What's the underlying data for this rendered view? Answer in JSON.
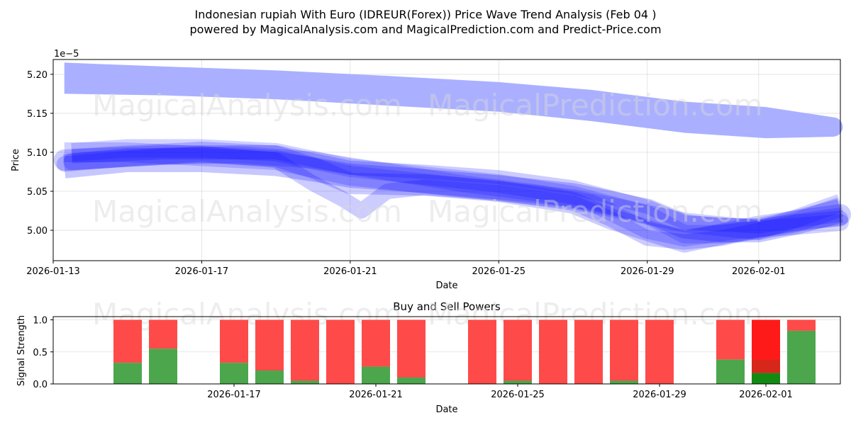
{
  "header": {
    "title_line1": "Indonesian rupiah With Euro (IDREUR(Forex)) Price Wave Trend Analysis (Feb 04 )",
    "title_line2": "powered by MagicalAnalysis.com and MagicalPrediction.com and Predict-Price.com"
  },
  "watermarks": {
    "left": "MagicalAnalysis.com",
    "right": "MagicalPrediction.com"
  },
  "colors": {
    "wave": "#0000ff",
    "wave_upper": "#aab0ff",
    "buy": "#4ca64c",
    "sell": "#ff4a4a",
    "buy_strong": "#138a13",
    "sell_strong": "#ff1a1a"
  },
  "chart_data": [
    {
      "type": "area",
      "title": "",
      "xlabel": "Date",
      "ylabel": "Price",
      "y_exponent_label": "1e−5",
      "xlim": [
        0,
        21.2
      ],
      "ylim": [
        4.961,
        5.219
      ],
      "grid": true,
      "x_ticks": [
        {
          "x": 0,
          "label": "2026-01-13"
        },
        {
          "x": 4,
          "label": "2026-01-17"
        },
        {
          "x": 8,
          "label": "2026-01-21"
        },
        {
          "x": 12,
          "label": "2026-01-25"
        },
        {
          "x": 16,
          "label": "2026-01-29"
        },
        {
          "x": 19,
          "label": "2026-02-01"
        }
      ],
      "y_ticks": [
        {
          "y": 5.0,
          "label": "5.00"
        },
        {
          "y": 5.05,
          "label": "5.05"
        },
        {
          "y": 5.1,
          "label": "5.10"
        },
        {
          "y": 5.15,
          "label": "5.15"
        },
        {
          "y": 5.2,
          "label": "5.20"
        }
      ],
      "upper_band": {
        "x": [
          0.3,
          3,
          6,
          9,
          12,
          14.5,
          17,
          19.2,
          21
        ],
        "upper": [
          5.215,
          5.21,
          5.205,
          5.198,
          5.19,
          5.18,
          5.165,
          5.158,
          5.145
        ],
        "lower": [
          5.175,
          5.173,
          5.168,
          5.16,
          5.152,
          5.14,
          5.125,
          5.118,
          5.12
        ]
      },
      "waves": [
        {
          "x": [
            0.3,
            2,
            4,
            6,
            7,
            8,
            10,
            12,
            14,
            16,
            17,
            18,
            19,
            20,
            21.2
          ],
          "y": [
            5.082,
            5.09,
            5.09,
            5.085,
            5.078,
            5.07,
            5.063,
            5.055,
            5.045,
            5.025,
            5.005,
            5.0,
            5.0,
            5.01,
            5.025
          ],
          "w": 34,
          "o": 0.22
        },
        {
          "x": [
            0.3,
            2,
            4,
            6,
            7,
            8,
            10,
            12,
            14,
            15,
            16,
            17,
            18,
            19,
            20,
            21.2
          ],
          "y": [
            5.09,
            5.095,
            5.1,
            5.095,
            5.08,
            5.06,
            5.058,
            5.05,
            5.035,
            5.015,
            5.0,
            4.985,
            4.995,
            5.005,
            5.012,
            5.02
          ],
          "w": 30,
          "o": 0.2
        },
        {
          "x": [
            0.5,
            2,
            4,
            6,
            8,
            10,
            12,
            14,
            16,
            17,
            18,
            19,
            20,
            21.2
          ],
          "y": [
            5.1,
            5.105,
            5.105,
            5.1,
            5.08,
            5.07,
            5.06,
            5.045,
            5.02,
            4.995,
            4.995,
            5.0,
            5.015,
            5.035
          ],
          "w": 26,
          "o": 0.18
        },
        {
          "x": [
            0.3,
            2,
            4,
            6,
            7,
            7.8,
            8.3,
            9,
            10,
            12,
            14,
            15,
            16,
            17,
            18,
            19,
            20,
            21.2
          ],
          "y": [
            5.085,
            5.092,
            5.098,
            5.09,
            5.06,
            5.04,
            5.025,
            5.05,
            5.055,
            5.048,
            5.035,
            5.015,
            4.99,
            4.985,
            4.99,
            5.0,
            5.01,
            5.015
          ],
          "w": 22,
          "o": 0.2
        },
        {
          "x": [
            0.5,
            3,
            6,
            8,
            10,
            12,
            14,
            16,
            17,
            19,
            21.2
          ],
          "y": [
            5.095,
            5.1,
            5.1,
            5.08,
            5.075,
            5.068,
            5.055,
            5.03,
            5.01,
            5.005,
            5.02
          ],
          "w": 20,
          "o": 0.2
        },
        {
          "x": [
            0.5,
            3,
            5,
            7,
            9,
            11,
            13,
            14.5,
            16,
            17,
            18.5,
            20,
            21.2
          ],
          "y": [
            5.088,
            5.095,
            5.097,
            5.09,
            5.075,
            5.06,
            5.048,
            5.035,
            5.0,
            4.99,
            5.0,
            5.005,
            5.01
          ],
          "w": 24,
          "o": 0.18
        },
        {
          "x": [
            0.3,
            2,
            4,
            6,
            8,
            10,
            12,
            14,
            16,
            17,
            18,
            19,
            20,
            21.2
          ],
          "y": [
            5.1,
            5.1,
            5.095,
            5.09,
            5.07,
            5.06,
            5.05,
            5.04,
            5.02,
            5.01,
            5.005,
            5.0,
            5.01,
            5.03
          ],
          "w": 28,
          "o": 0.18
        }
      ]
    },
    {
      "type": "bar",
      "title": "Buy and Sell Powers",
      "xlabel": "Date",
      "ylabel": "Signal Strength",
      "xlim": [
        -1.1,
        21.1
      ],
      "ylim": [
        0,
        1.05
      ],
      "grid": true,
      "x_ticks": [
        {
          "x": 4,
          "label": "2026-01-17"
        },
        {
          "x": 8,
          "label": "2026-01-21"
        },
        {
          "x": 12,
          "label": "2026-01-25"
        },
        {
          "x": 16,
          "label": "2026-01-29"
        },
        {
          "x": 19,
          "label": "2026-02-01"
        }
      ],
      "y_ticks": [
        {
          "y": 0.0,
          "label": "0.0"
        },
        {
          "y": 0.5,
          "label": "0.5"
        },
        {
          "y": 1.0,
          "label": "1.0"
        }
      ],
      "bars": [
        {
          "x": 1,
          "buy": 0.33,
          "strong": false
        },
        {
          "x": 2,
          "buy": 0.55,
          "strong": false
        },
        {
          "x": 4,
          "buy": 0.33,
          "strong": false
        },
        {
          "x": 5,
          "buy": 0.21,
          "strong": false
        },
        {
          "x": 6,
          "buy": 0.05,
          "strong": false
        },
        {
          "x": 7,
          "buy": 0.0,
          "strong": false
        },
        {
          "x": 8,
          "buy": 0.27,
          "strong": false
        },
        {
          "x": 9,
          "buy": 0.1,
          "strong": false
        },
        {
          "x": 11,
          "buy": 0.0,
          "strong": false
        },
        {
          "x": 12,
          "buy": 0.05,
          "strong": false
        },
        {
          "x": 13,
          "buy": 0.0,
          "strong": false
        },
        {
          "x": 14,
          "buy": 0.0,
          "strong": false
        },
        {
          "x": 15,
          "buy": 0.05,
          "strong": false
        },
        {
          "x": 16,
          "buy": 0.0,
          "strong": false
        },
        {
          "x": 18,
          "buy": 0.38,
          "strong": false
        },
        {
          "x": 19,
          "buy": 0.17,
          "strong": true
        },
        {
          "x": 20,
          "buy": 0.83,
          "strong": false
        }
      ]
    }
  ]
}
